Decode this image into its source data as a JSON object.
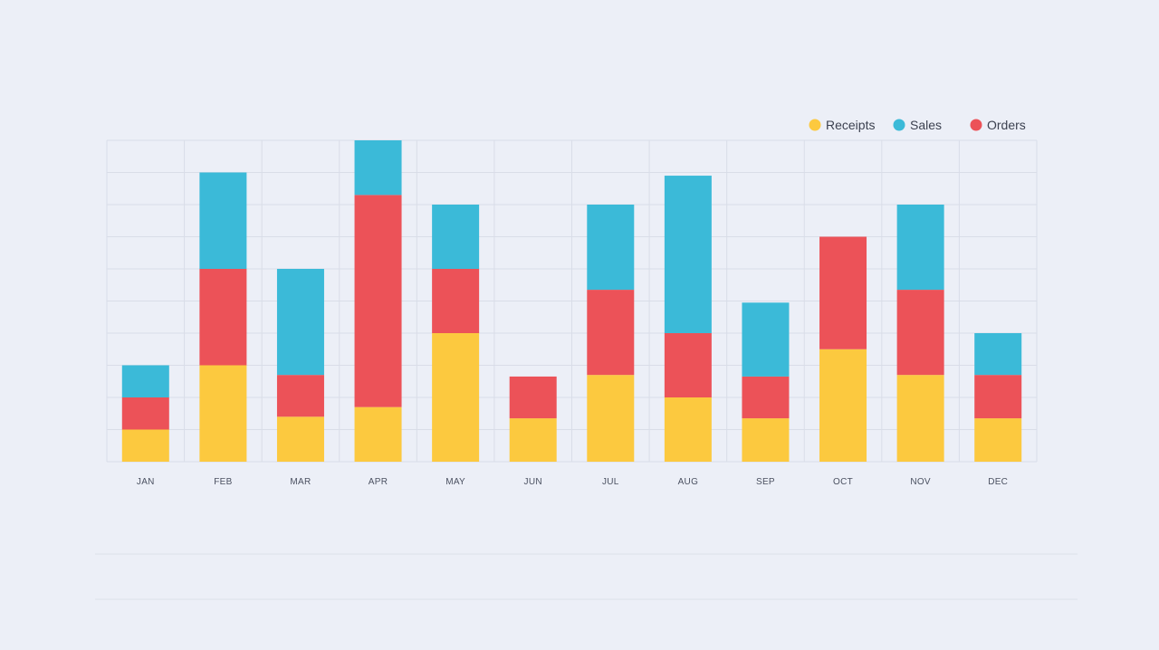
{
  "chart_data": {
    "type": "bar",
    "stacked": true,
    "categories": [
      "JAN",
      "FEB",
      "MAR",
      "APR",
      "MAY",
      "JUN",
      "JUL",
      "AUG",
      "SEP",
      "OCT",
      "NOV",
      "DEC"
    ],
    "series": [
      {
        "name": "Receipts",
        "color": "#fcc93f",
        "values": [
          1,
          3,
          1.4,
          1.7,
          4,
          1.35,
          2.7,
          2,
          1.35,
          3.5,
          2.7,
          1.35
        ]
      },
      {
        "name": "Orders",
        "color": "#ec5258",
        "values": [
          1,
          3,
          1.3,
          6.6,
          2,
          1.3,
          2.65,
          2,
          1.3,
          3.5,
          2.65,
          1.35
        ]
      },
      {
        "name": "Sales",
        "color": "#3bbad8",
        "values": [
          1,
          3,
          3.3,
          1.7,
          2,
          0,
          2.65,
          4.9,
          2.3,
          0,
          2.65,
          1.3
        ]
      }
    ],
    "legend_order": [
      "Receipts",
      "Sales",
      "Orders"
    ],
    "ylim": [
      0,
      10
    ],
    "grid": true,
    "legend_position": "top-right",
    "title": "",
    "xlabel": "",
    "ylabel": ""
  }
}
